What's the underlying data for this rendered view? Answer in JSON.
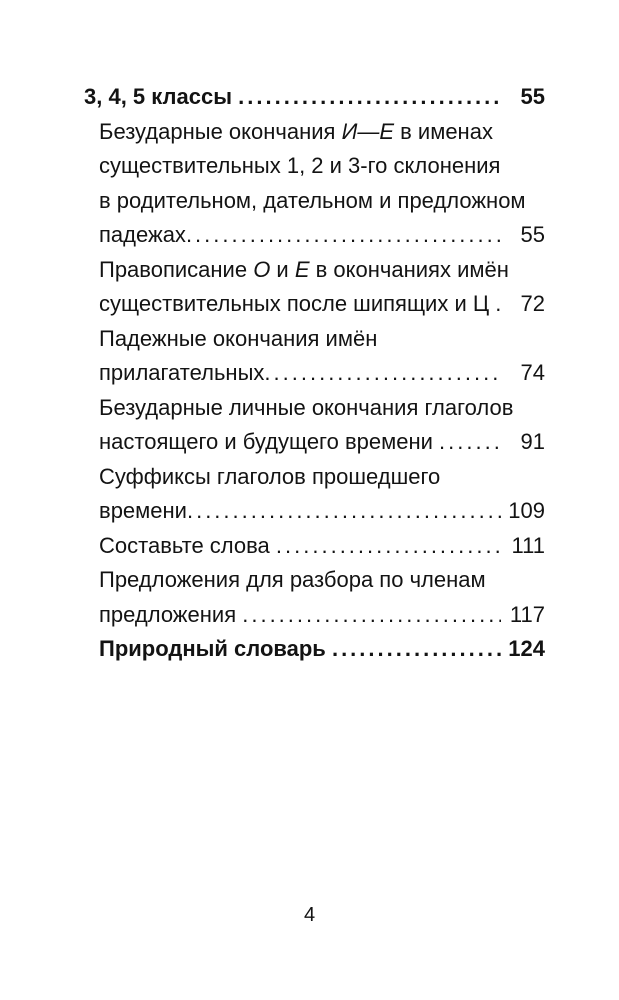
{
  "page": {
    "background": "#ffffff",
    "text_color": "#131313",
    "footer_page_number": "4"
  },
  "toc": {
    "entries": [
      {
        "id": "grades-3-4-5",
        "bold": true,
        "indent": false,
        "lines": [
          {
            "segments": [
              {
                "text": "3, 4, 5 классы ",
                "italic": false
              }
            ],
            "page": "55"
          }
        ]
      },
      {
        "id": "unstressed-noun-endings-i-e",
        "bold": false,
        "indent": true,
        "lines": [
          {
            "segments": [
              {
                "text": "Безударные окончания ",
                "italic": false
              },
              {
                "text": "И—Е",
                "italic": true
              },
              {
                "text": " в именах",
                "italic": false
              }
            ]
          },
          {
            "segments": [
              {
                "text": "существительных 1, 2 и 3-го склонения",
                "italic": false
              }
            ]
          },
          {
            "segments": [
              {
                "text": "в родительном, дательном и предложном",
                "italic": false
              }
            ]
          },
          {
            "segments": [
              {
                "text": "падежах",
                "italic": false
              }
            ],
            "page": "55"
          }
        ]
      },
      {
        "id": "spelling-o-e-after-sibilants",
        "bold": false,
        "indent": true,
        "lines": [
          {
            "segments": [
              {
                "text": "Правописание ",
                "italic": false
              },
              {
                "text": "О",
                "italic": true
              },
              {
                "text": " и ",
                "italic": false
              },
              {
                "text": "Е",
                "italic": true
              },
              {
                "text": " в окончаниях имён",
                "italic": false
              }
            ]
          },
          {
            "segments": [
              {
                "text": "существительных после шипящих и Ц ",
                "italic": false
              }
            ],
            "page": "72"
          }
        ]
      },
      {
        "id": "adjective-case-endings",
        "bold": false,
        "indent": true,
        "lines": [
          {
            "segments": [
              {
                "text": "Падежные окончания имён",
                "italic": false
              }
            ]
          },
          {
            "segments": [
              {
                "text": "прилагательных",
                "italic": false
              }
            ],
            "page": "74"
          }
        ]
      },
      {
        "id": "unstressed-personal-verb-endings",
        "bold": false,
        "indent": true,
        "lines": [
          {
            "segments": [
              {
                "text": "Безударные личные окончания глаголов",
                "italic": false
              }
            ]
          },
          {
            "segments": [
              {
                "text": "настоящего и будущего времени ",
                "italic": false
              }
            ],
            "page": "91"
          }
        ]
      },
      {
        "id": "past-tense-verb-suffixes",
        "bold": false,
        "indent": true,
        "lines": [
          {
            "segments": [
              {
                "text": "Суффиксы глаголов прошедшего",
                "italic": false
              }
            ]
          },
          {
            "segments": [
              {
                "text": "времени",
                "italic": false
              }
            ],
            "page": "109"
          }
        ]
      },
      {
        "id": "compose-words",
        "bold": false,
        "indent": true,
        "lines": [
          {
            "segments": [
              {
                "text": "Составьте слова ",
                "italic": false
              }
            ],
            "page": "111"
          }
        ]
      },
      {
        "id": "sentences-for-parsing",
        "bold": false,
        "indent": true,
        "lines": [
          {
            "segments": [
              {
                "text": "Предложения для разбора по членам",
                "italic": false
              }
            ]
          },
          {
            "segments": [
              {
                "text": "предложения ",
                "italic": false
              }
            ],
            "page": "117"
          }
        ]
      },
      {
        "id": "nature-dictionary",
        "bold": true,
        "indent": true,
        "lines": [
          {
            "segments": [
              {
                "text": "Природный словарь ",
                "italic": false
              }
            ],
            "page": "124"
          }
        ]
      }
    ]
  }
}
